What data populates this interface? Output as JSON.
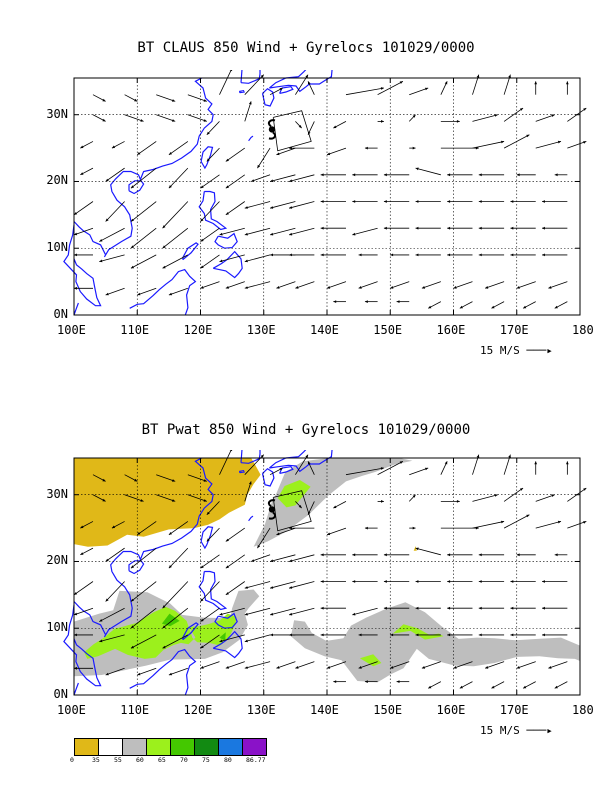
{
  "panels": [
    {
      "title": "BT CLAUS 850 Wind + Gyrelocs 101029/0000",
      "x_ticks": [
        "100E",
        "110E",
        "120E",
        "130E",
        "140E",
        "150E",
        "160E",
        "170E",
        "180"
      ],
      "y_ticks": [
        "0N",
        "10N",
        "20N",
        "30N"
      ],
      "vector_scale_label": "15 M/S"
    },
    {
      "title": "BT Pwat 850 Wind + Gyrelocs 101029/0000",
      "x_ticks": [
        "100E",
        "110E",
        "120E",
        "130E",
        "140E",
        "150E",
        "160E",
        "170E",
        "180"
      ],
      "y_ticks": [
        "0N",
        "10N",
        "20N",
        "30N"
      ],
      "vector_scale_label": "15 M/S"
    }
  ],
  "colorbar": {
    "labels": [
      "0",
      "35",
      "55",
      "60",
      "65",
      "70",
      "75",
      "80",
      "86.77"
    ],
    "colors": [
      "#e0b818",
      "#ffffff",
      "#bebebe",
      "#9cf01c",
      "#44c800",
      "#128a12",
      "#1a78e0",
      "#8a12c8"
    ]
  },
  "colors": {
    "coastline": "#1a1aff",
    "frame": "#000000"
  },
  "icons": [
    "storm-symbol-icon",
    "arrow-right-icon"
  ]
}
